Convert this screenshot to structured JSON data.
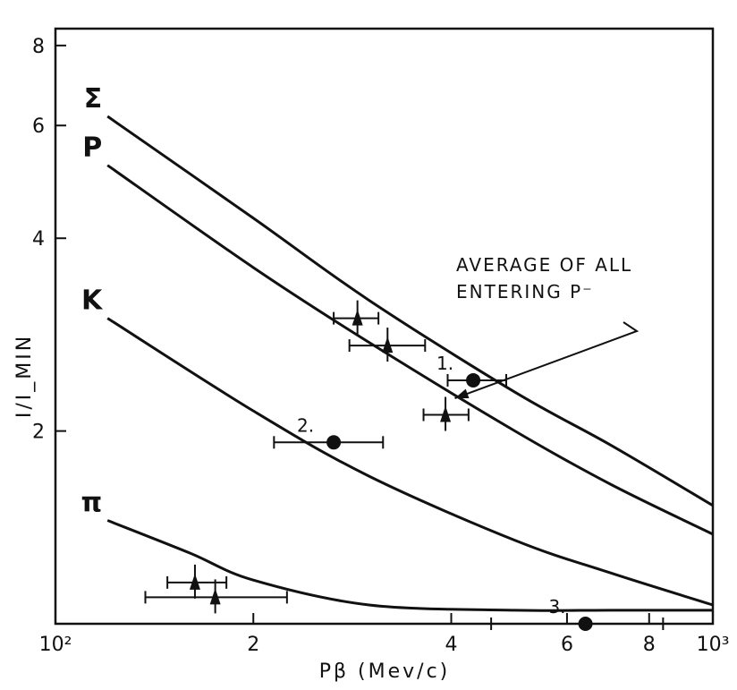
{
  "chart_data": {
    "type": "scatter",
    "xlabel": "Pβ   (Mev/c)",
    "ylabel": "I/I_MIN",
    "x_scale": "log",
    "y_scale": "log",
    "xlim": [
      100,
      1000
    ],
    "ylim": [
      1.0,
      8.5
    ],
    "x_ticks": [
      {
        "value": 100,
        "label": "10²"
      },
      {
        "value": 200,
        "label": "2"
      },
      {
        "value": 400,
        "label": "4"
      },
      {
        "value": 600,
        "label": "6"
      },
      {
        "value": 800,
        "label": "8"
      },
      {
        "value": 1000,
        "label": "10³"
      }
    ],
    "y_ticks": [
      {
        "value": 2,
        "label": "2"
      },
      {
        "value": 4,
        "label": "4"
      },
      {
        "value": 6,
        "label": "6"
      },
      {
        "value": 8,
        "label": "8"
      }
    ],
    "grid": false,
    "curves": [
      {
        "name": "Σ",
        "points": [
          [
            120,
            6.2
          ],
          [
            200,
            4.3
          ],
          [
            300,
            3.2
          ],
          [
            500,
            2.3
          ],
          [
            700,
            1.9
          ],
          [
            1000,
            1.53
          ]
        ]
      },
      {
        "name": "P",
        "points": [
          [
            120,
            5.2
          ],
          [
            200,
            3.6
          ],
          [
            300,
            2.75
          ],
          [
            500,
            2.0
          ],
          [
            700,
            1.65
          ],
          [
            1000,
            1.38
          ]
        ]
      },
      {
        "name": "K",
        "points": [
          [
            120,
            3.0
          ],
          [
            200,
            2.15
          ],
          [
            300,
            1.7
          ],
          [
            500,
            1.35
          ],
          [
            700,
            1.2
          ],
          [
            1000,
            1.07
          ]
        ]
      },
      {
        "name": "π",
        "points": [
          [
            120,
            1.45
          ],
          [
            160,
            1.29
          ],
          [
            200,
            1.17
          ],
          [
            300,
            1.07
          ],
          [
            500,
            1.05
          ],
          [
            700,
            1.05
          ],
          [
            1000,
            1.05
          ]
        ]
      }
    ],
    "points": [
      {
        "marker": "triangle",
        "x": 288,
        "y": 3.0,
        "xerr": [
          265,
          310
        ]
      },
      {
        "marker": "triangle",
        "x": 320,
        "y": 2.72,
        "xerr": [
          280,
          365
        ]
      },
      {
        "marker": "triangle",
        "x": 392,
        "y": 2.12,
        "xerr": [
          363,
          425
        ]
      },
      {
        "marker": "circle",
        "x": 432,
        "y": 2.4,
        "xerr": [
          395,
          485
        ],
        "label": "1."
      },
      {
        "marker": "circle",
        "x": 265,
        "y": 1.92,
        "xerr": [
          215,
          315
        ],
        "label": "2."
      },
      {
        "marker": "circle",
        "x": 640,
        "y": 1.0,
        "xerr": [
          460,
          840
        ],
        "label": "3."
      },
      {
        "marker": "triangle",
        "x": 163,
        "y": 1.16,
        "xerr": [
          148,
          182
        ]
      },
      {
        "marker": "triangle",
        "x": 175,
        "y": 1.1,
        "xerr": [
          137,
          225
        ]
      }
    ],
    "annotation": {
      "lines": [
        "AVERAGE OF ALL",
        "ENTERING P⁻"
      ],
      "target": {
        "x": 405,
        "y": 2.25
      }
    },
    "series_labels": [
      "Σ",
      "P",
      "K",
      "π"
    ]
  }
}
